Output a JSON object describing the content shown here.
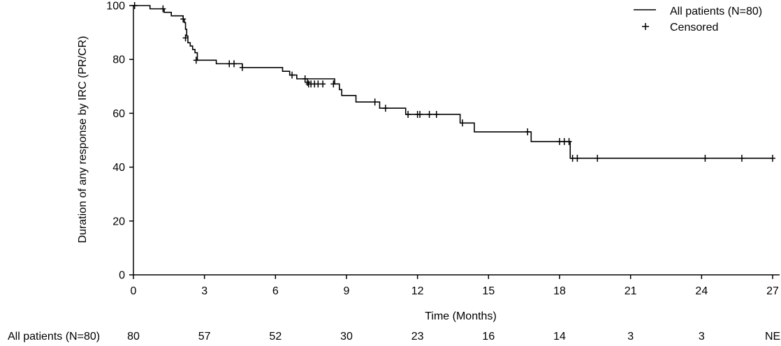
{
  "chart_data": {
    "type": "line",
    "subtype": "kaplan-meier",
    "xlabel": "Time (Months)",
    "ylabel": "Duration of any response by IRC (PR/CR)",
    "xlim": [
      0,
      27
    ],
    "ylim": [
      0,
      100
    ],
    "x_ticks": [
      0,
      3,
      6,
      9,
      12,
      15,
      18,
      21,
      24,
      27
    ],
    "y_ticks": [
      0,
      20,
      40,
      60,
      80,
      100
    ],
    "grid": false,
    "legend_position": "top-right",
    "legend": {
      "series_label": "All patients (N=80)",
      "censored_label": "Censored"
    },
    "series": [
      {
        "name": "All patients (N=80)",
        "color": "#000000",
        "steps": [
          [
            0,
            100
          ],
          [
            0.7,
            98.8
          ],
          [
            1.3,
            97.5
          ],
          [
            1.6,
            96.2
          ],
          [
            2.1,
            95.0
          ],
          [
            2.15,
            93.7
          ],
          [
            2.2,
            91.2
          ],
          [
            2.25,
            88.7
          ],
          [
            2.3,
            86.2
          ],
          [
            2.4,
            85.0
          ],
          [
            2.5,
            83.7
          ],
          [
            2.6,
            82.5
          ],
          [
            2.7,
            79.7
          ],
          [
            3.5,
            78.4
          ],
          [
            4.6,
            77.0
          ],
          [
            6.3,
            75.6
          ],
          [
            6.6,
            74.2
          ],
          [
            6.9,
            72.8
          ],
          [
            8.5,
            70.9
          ],
          [
            8.7,
            68.8
          ],
          [
            8.8,
            66.6
          ],
          [
            9.4,
            64.2
          ],
          [
            10.4,
            61.9
          ],
          [
            11.5,
            59.6
          ],
          [
            13.8,
            56.4
          ],
          [
            14.4,
            53.1
          ],
          [
            16.8,
            49.5
          ],
          [
            18.45,
            43.3
          ],
          [
            27,
            43.3
          ]
        ],
        "censored": [
          [
            0.05,
            100
          ],
          [
            1.25,
            98.8
          ],
          [
            2.1,
            95.0
          ],
          [
            2.2,
            88.0
          ],
          [
            2.65,
            79.7
          ],
          [
            4.05,
            78.4
          ],
          [
            4.25,
            78.4
          ],
          [
            4.6,
            77.0
          ],
          [
            6.7,
            74.2
          ],
          [
            7.25,
            72.8
          ],
          [
            7.35,
            71.5
          ],
          [
            7.4,
            70.9
          ],
          [
            7.5,
            70.9
          ],
          [
            7.65,
            70.9
          ],
          [
            7.8,
            70.9
          ],
          [
            8.0,
            70.9
          ],
          [
            8.45,
            70.9
          ],
          [
            10.2,
            64.2
          ],
          [
            10.65,
            61.9
          ],
          [
            11.6,
            59.6
          ],
          [
            12.0,
            59.6
          ],
          [
            12.1,
            59.6
          ],
          [
            12.5,
            59.6
          ],
          [
            12.8,
            59.6
          ],
          [
            13.9,
            56.4
          ],
          [
            16.65,
            53.1
          ],
          [
            18.0,
            49.5
          ],
          [
            18.2,
            49.5
          ],
          [
            18.4,
            49.5
          ],
          [
            18.55,
            43.3
          ],
          [
            18.75,
            43.3
          ],
          [
            19.6,
            43.3
          ],
          [
            24.15,
            43.3
          ],
          [
            25.7,
            43.3
          ],
          [
            27,
            43.3
          ]
        ]
      }
    ],
    "risk_table": {
      "label": "All patients (N=80)",
      "values": [
        "80",
        "57",
        "52",
        "30",
        "23",
        "16",
        "14",
        "3",
        "3",
        "NE"
      ]
    }
  }
}
